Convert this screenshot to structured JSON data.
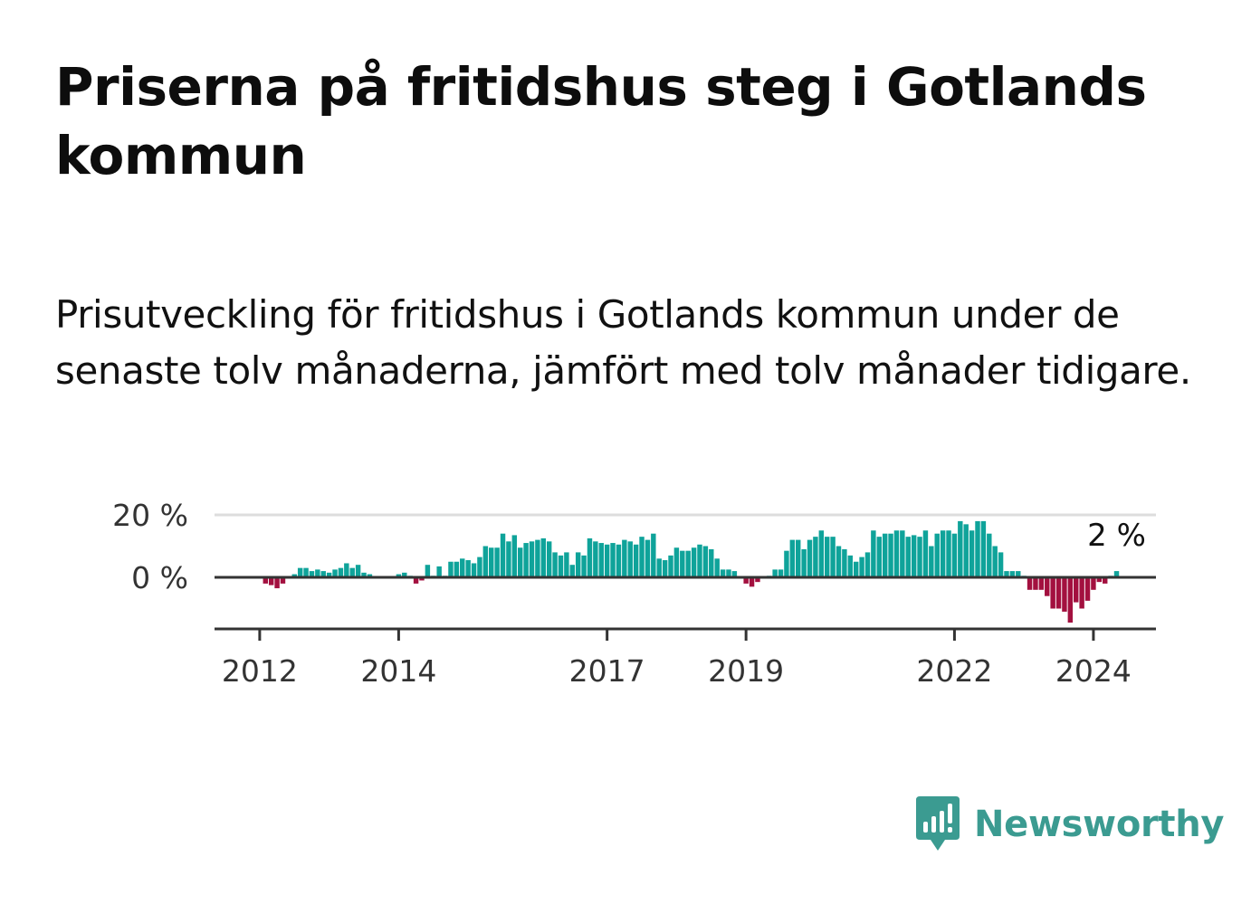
{
  "title": "Priserna på fritidshus steg i Gotlands kommun",
  "subtitle": "Prisutveckling för fritidshus i Gotlands kommun under de senaste tolv månaderna, jämfört med tolv månader tidigare.",
  "brand": {
    "name": "Newsworthy",
    "logo_icon": "bar-chart-speech-bubble-icon"
  },
  "colors": {
    "positive": "#0fa39a",
    "negative": "#a3103f",
    "gridline": "#dddddd",
    "axis": "#333333",
    "brand": "#3b9b91"
  },
  "chart_data": {
    "type": "bar",
    "title": "Priserna på fritidshus steg i Gotlands kommun",
    "subtitle": "Prisutveckling för fritidshus i Gotlands kommun under de senaste tolv månaderna, jämfört med tolv månader tidigare.",
    "xlabel": "",
    "ylabel": "",
    "unit": "%",
    "y_ticks": [
      {
        "value": 0,
        "label": "0 %"
      },
      {
        "value": 20,
        "label": "20 %"
      }
    ],
    "ylim": [
      -17,
      20
    ],
    "grid": true,
    "x_ticks": [
      {
        "value": 2012.0,
        "label": "2012"
      },
      {
        "value": 2014.0,
        "label": "2014"
      },
      {
        "value": 2017.0,
        "label": "2017"
      },
      {
        "value": 2019.0,
        "label": "2019"
      },
      {
        "value": 2022.0,
        "label": "2022"
      },
      {
        "value": 2024.0,
        "label": "2024"
      }
    ],
    "xlim": [
      2011.35,
      2024.9
    ],
    "x_start": 2012.0,
    "x_step_months": 1,
    "last_value_label": "2 %",
    "values": [
      0,
      -2,
      -2.5,
      -3.5,
      -2,
      0,
      1,
      3,
      3,
      2,
      2.5,
      2,
      1.5,
      2.5,
      3,
      4.5,
      3,
      4,
      1.5,
      1,
      0,
      0,
      0,
      0,
      1,
      1.5,
      0.5,
      -2,
      -1,
      4,
      0.5,
      3.5,
      0.5,
      5,
      5,
      6,
      5.5,
      4.5,
      6.5,
      10,
      9.5,
      9.5,
      14,
      11.5,
      13.5,
      9.5,
      11,
      11.5,
      12,
      12.5,
      11.5,
      8,
      7,
      8,
      4,
      8,
      7,
      12.5,
      11.5,
      11,
      10.5,
      11,
      10.5,
      12,
      11.5,
      10.5,
      13,
      12,
      14,
      6,
      5.5,
      7,
      9.5,
      8.5,
      8.5,
      9.5,
      10.5,
      10,
      9,
      6,
      2.5,
      2.5,
      2,
      0,
      -2,
      -3,
      -1.5,
      0,
      0.5,
      2.5,
      2.5,
      8.5,
      12,
      12,
      9,
      12,
      13,
      15,
      13,
      13,
      10,
      9,
      7,
      5,
      6.5,
      8,
      15,
      13,
      14,
      14,
      15,
      15,
      13,
      13.5,
      13,
      15,
      10,
      14,
      15,
      15,
      14,
      18,
      17,
      15,
      18,
      18,
      14,
      10,
      8,
      2,
      2,
      2,
      0.5,
      -4,
      -4,
      -4,
      -6,
      -10,
      -10,
      -11,
      -14.5,
      -8,
      -10,
      -7.5,
      -4,
      -1.5,
      -2,
      0.5,
      2
    ]
  }
}
